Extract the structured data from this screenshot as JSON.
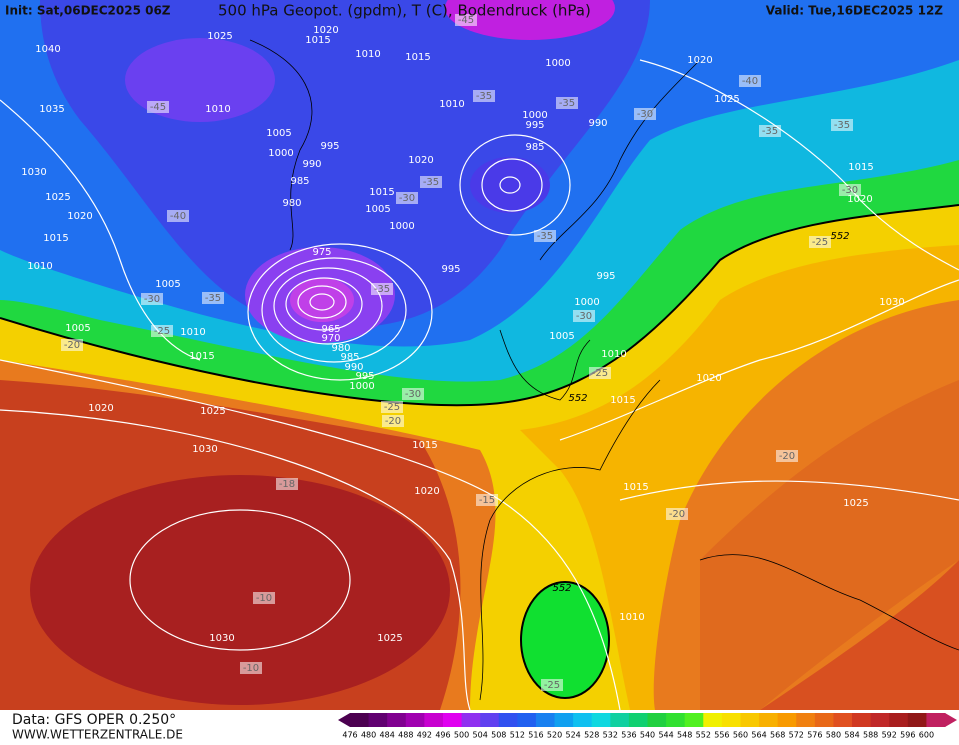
{
  "header": {
    "init": "Init: Sat,06DEC2025 06Z",
    "title": "500 hPa Geopot. (gpdm), T (C), Bodendruck (hPa)",
    "valid": "Valid: Tue,16DEC2025 12Z"
  },
  "footer": {
    "source": "Data: GFS OPER 0.250°",
    "website": "WWW.WETTERZENTRALE.DE"
  },
  "colorbar": {
    "labels": [
      "476",
      "480",
      "484",
      "488",
      "492",
      "496",
      "500",
      "504",
      "508",
      "512",
      "516",
      "520",
      "524",
      "528",
      "532",
      "536",
      "540",
      "544",
      "548",
      "552",
      "556",
      "560",
      "564",
      "568",
      "572",
      "576",
      "580",
      "584",
      "588",
      "592",
      "596",
      "600"
    ]
  },
  "isobar_labels": [
    "1040",
    "1025",
    "1020",
    "1015",
    "1010",
    "1015",
    "1000",
    "1020",
    "1025",
    "1035",
    "1010",
    "1005",
    "1000",
    "995",
    "990",
    "985",
    "980",
    "1020",
    "1010",
    "1000",
    "995",
    "990",
    "985",
    "1015",
    "1005",
    "1000",
    "975",
    "995",
    "995",
    "1000",
    "1005",
    "1010",
    "1015",
    "1030",
    "1025",
    "1020",
    "1015",
    "1010",
    "1005",
    "1005",
    "1010",
    "1015",
    "965",
    "970",
    "980",
    "985",
    "990",
    "995",
    "1000",
    "1020",
    "1025",
    "1015",
    "1030",
    "1020",
    "1015",
    "1020",
    "1030",
    "1015",
    "1020",
    "1025",
    "1010",
    "1030",
    "1025"
  ],
  "temperature_labels": [
    "-45",
    "-40",
    "-35",
    "-30",
    "-25",
    "-20",
    "-35",
    "-35",
    "-35",
    "-30",
    "-35",
    "-30",
    "-35",
    "-30",
    "-25",
    "-30",
    "-25",
    "-20",
    "-40",
    "-35",
    "-35",
    "-30",
    "-25",
    "-18",
    "-15",
    "-20",
    "-20",
    "-10",
    "-10",
    "-25",
    "-45"
  ],
  "geopotential_labels": [
    "552",
    "552",
    "552"
  ]
}
